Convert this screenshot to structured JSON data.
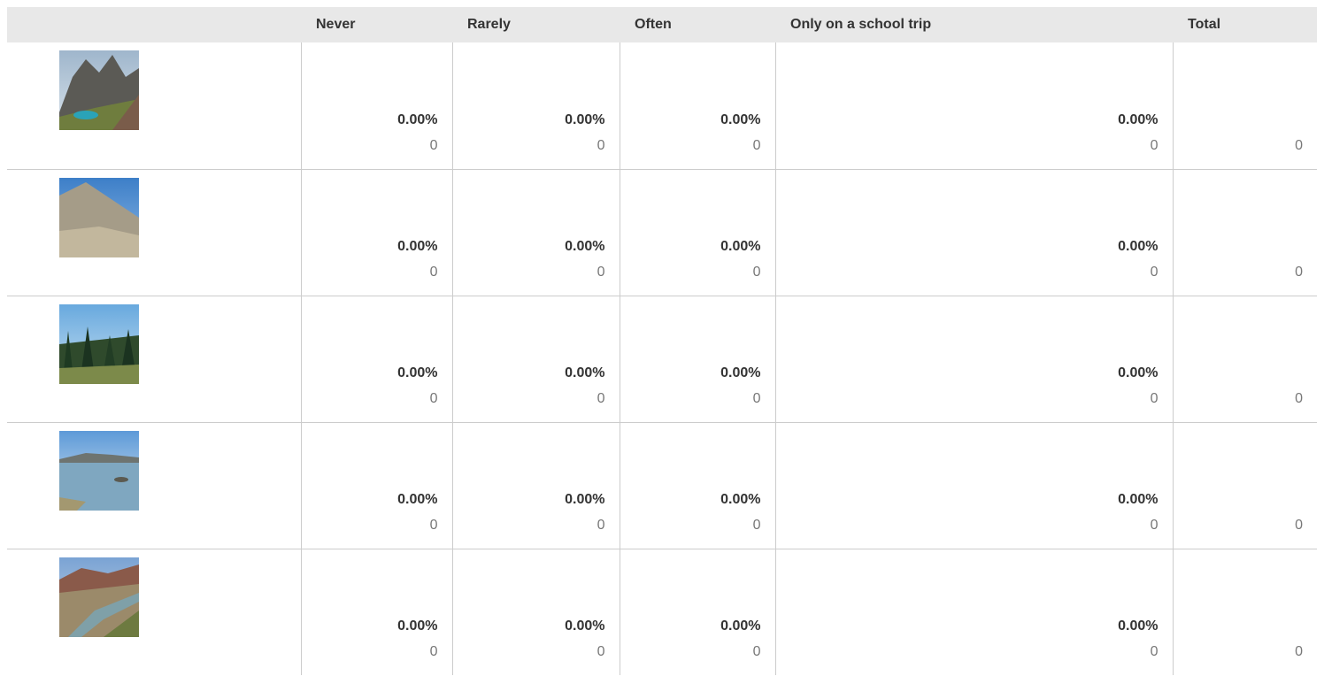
{
  "table": {
    "columns": [
      "Never",
      "Rarely",
      "Often",
      "Only on a school trip",
      "Total"
    ],
    "rows": [
      {
        "cells": [
          {
            "percent": "0.00%",
            "count": "0"
          },
          {
            "percent": "0.00%",
            "count": "0"
          },
          {
            "percent": "0.00%",
            "count": "0"
          },
          {
            "percent": "0.00%",
            "count": "0"
          }
        ],
        "total": "0"
      },
      {
        "cells": [
          {
            "percent": "0.00%",
            "count": "0"
          },
          {
            "percent": "0.00%",
            "count": "0"
          },
          {
            "percent": "0.00%",
            "count": "0"
          },
          {
            "percent": "0.00%",
            "count": "0"
          }
        ],
        "total": "0"
      },
      {
        "cells": [
          {
            "percent": "0.00%",
            "count": "0"
          },
          {
            "percent": "0.00%",
            "count": "0"
          },
          {
            "percent": "0.00%",
            "count": "0"
          },
          {
            "percent": "0.00%",
            "count": "0"
          }
        ],
        "total": "0"
      },
      {
        "cells": [
          {
            "percent": "0.00%",
            "count": "0"
          },
          {
            "percent": "0.00%",
            "count": "0"
          },
          {
            "percent": "0.00%",
            "count": "0"
          },
          {
            "percent": "0.00%",
            "count": "0"
          }
        ],
        "total": "0"
      },
      {
        "cells": [
          {
            "percent": "0.00%",
            "count": "0"
          },
          {
            "percent": "0.00%",
            "count": "0"
          },
          {
            "percent": "0.00%",
            "count": "0"
          },
          {
            "percent": "0.00%",
            "count": "0"
          }
        ],
        "total": "0"
      }
    ]
  }
}
